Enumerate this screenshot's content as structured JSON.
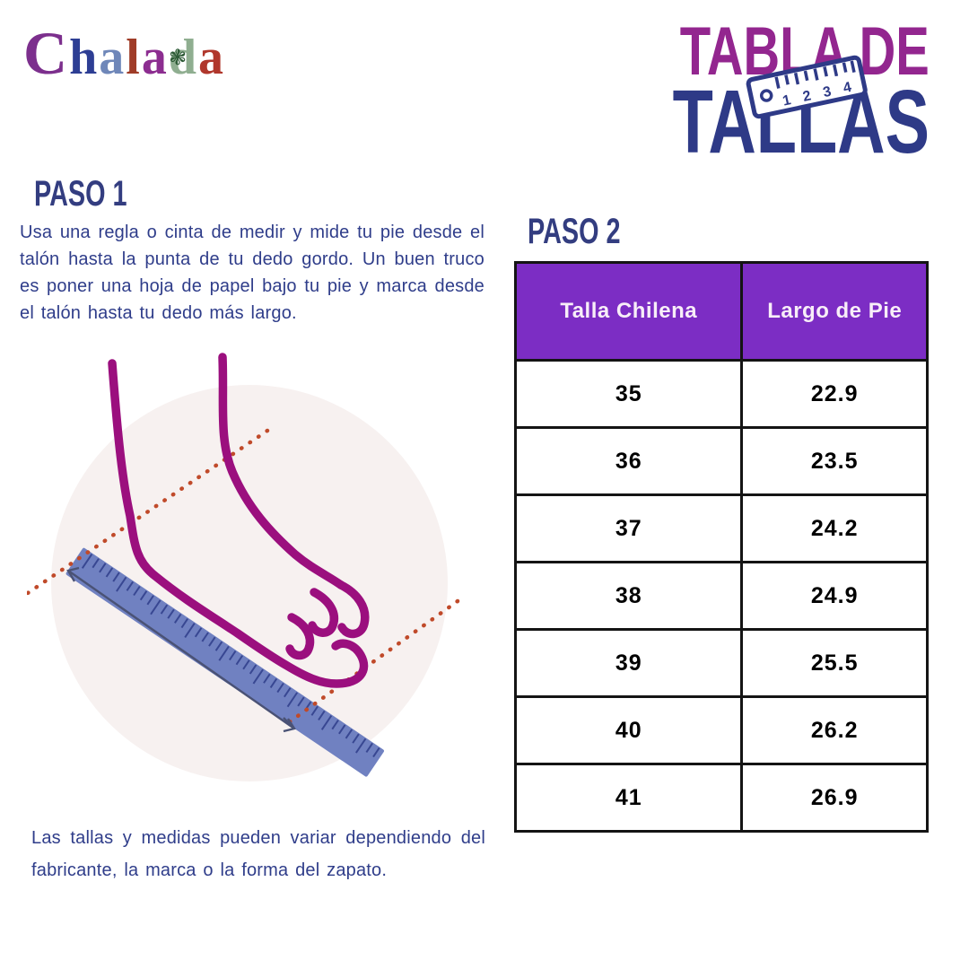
{
  "brand": {
    "name": "Chalada",
    "letters": [
      {
        "char": "C",
        "color": "#7c2f8d"
      },
      {
        "char": "h",
        "color": "#2d3e94"
      },
      {
        "char": "a",
        "color": "#6f87b9"
      },
      {
        "char": "l",
        "color": "#9f3c28"
      },
      {
        "char": "a",
        "color": "#8c2d90"
      },
      {
        "char": "d",
        "color": "#8fae90"
      },
      {
        "char": "a",
        "color": "#b0372c"
      }
    ],
    "flower_glyph": "❃",
    "flower_color": "#2d5a36"
  },
  "title": {
    "line1": "TABLA DE",
    "line2": "TALLAS",
    "line1_color": "#93268f",
    "line2_color": "#2e3a87",
    "ruler_nums": [
      "1",
      "2",
      "3",
      "4"
    ]
  },
  "step1": {
    "heading": "PASO 1",
    "body": "Usa una regla o cinta de medir y mide tu pie desde el talón hasta la punta de tu dedo gordo. Un buen truco es poner una hoja de papel bajo tu pie y marca desde el talón hasta tu dedo más largo."
  },
  "step2": {
    "heading": "PASO 2"
  },
  "size_table": {
    "headers": [
      "Talla Chilena",
      "Largo de Pie"
    ],
    "rows": [
      [
        "35",
        "22.9"
      ],
      [
        "36",
        "23.5"
      ],
      [
        "37",
        "24.2"
      ],
      [
        "38",
        "24.9"
      ],
      [
        "39",
        "25.5"
      ],
      [
        "40",
        "26.2"
      ],
      [
        "41",
        "26.9"
      ]
    ],
    "header_bg": "#7c2dc4",
    "header_text_color": "#f8eef8",
    "cell_text_color": "#2c3a8c",
    "border_color": "#141414"
  },
  "footnote": "Las tallas y medidas pueden variar dependiendo del fabricante, la marca o la forma del zapato.",
  "text_color": "#2f3d8a",
  "heading_color": "#333d80",
  "illustration": {
    "circle_color": "#f7f1f0",
    "foot_color": "#9b0f7e",
    "ruler_color": "#7081c1",
    "tick_color": "#2f3d8a",
    "arrow_color": "#4a5275",
    "dotted_color": "#c04a2a",
    "icon_stroke": "#2e3a87"
  }
}
